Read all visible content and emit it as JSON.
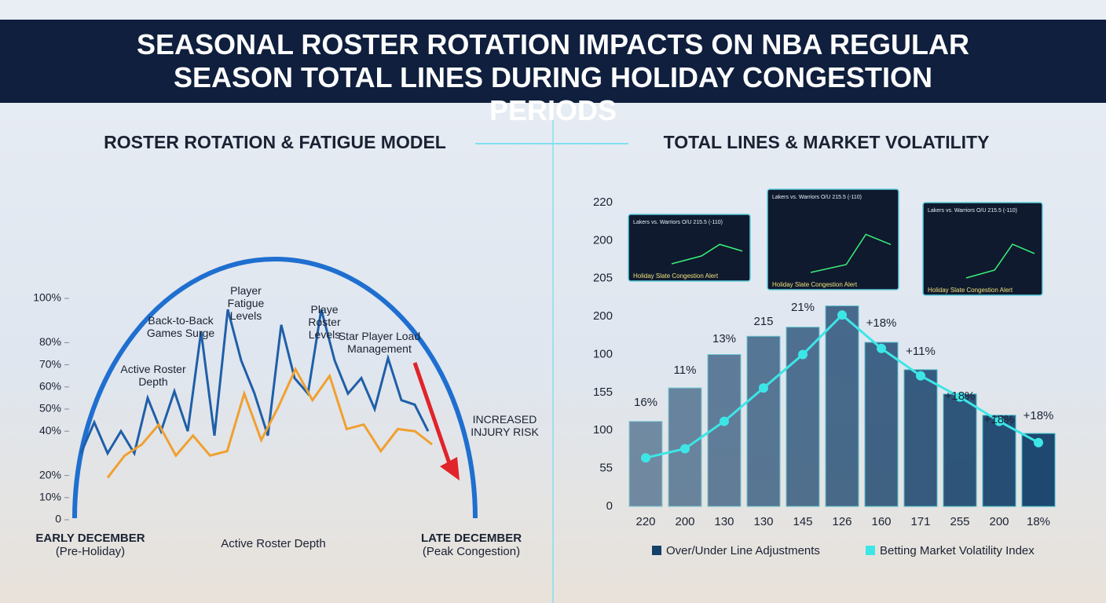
{
  "title": "SEASONAL ROSTER ROTATION IMPACTS ON NBA REGULAR SEASON TOTAL LINES DURING HOLIDAY CONGESTION PERIODS",
  "chart_data": [
    {
      "type": "line",
      "title": "ROSTER ROTATION & FATIGUE MODEL",
      "ylim": [
        0,
        100
      ],
      "yticks": [
        0,
        {
          "value": 10,
          "label": "10%"
        },
        {
          "value": 20,
          "label": "20%"
        },
        {
          "value": 40,
          "label": "40%"
        },
        {
          "value": 50,
          "label": "50%"
        },
        {
          "value": 60,
          "label": "60%"
        },
        {
          "value": 70,
          "label": "70%"
        },
        {
          "value": 80,
          "label": "80%"
        },
        {
          "value": 100,
          "label": "100%"
        }
      ],
      "series": [
        {
          "color": "#1f5fa8",
          "values": [
            30,
            44,
            30,
            40,
            30,
            55,
            40,
            58,
            40,
            85,
            38,
            95,
            72,
            57,
            38,
            88,
            64,
            57,
            95,
            72,
            57,
            64,
            50,
            73,
            54,
            52,
            40
          ]
        },
        {
          "color": "#f0a030",
          "values": [
            19,
            29,
            34,
            43,
            29,
            38,
            29,
            31,
            57,
            36,
            51,
            68,
            54,
            65,
            41,
            43,
            31,
            41,
            40,
            34
          ]
        }
      ],
      "x_start_label": "EARLY DECEMBER",
      "x_start_sublabel": "(Pre-Holiday)",
      "x_end_label": "LATE DECEMBER",
      "x_end_sublabel": "(Peak Congestion)",
      "xlabel": "Active Roster Depth",
      "annotations": [
        "Player Fatigue Levels",
        "Back-to-Back Games Surge",
        "Active Roster Depth",
        "Playe Roster Levels",
        "Star Player Load Management",
        "INCREASED INJURY RISK"
      ]
    },
    {
      "type": "bar",
      "title": "TOTAL LINES & MARKET VOLATILITY",
      "categories": [
        "220",
        "200",
        "130",
        "130",
        "145",
        "126",
        "160",
        "171",
        "255",
        "200",
        "18%"
      ],
      "y_axis_labels": [
        "220",
        "200",
        "205",
        "200",
        "100",
        "155",
        "100",
        "55",
        "0"
      ],
      "ylim": [
        0,
        100
      ],
      "series": [
        {
          "name": "Over/Under Line Adjustments",
          "type": "bar",
          "color": "#14406a",
          "values": [
            28,
            39,
            50,
            56,
            59,
            66,
            54,
            45,
            37,
            30,
            24
          ]
        },
        {
          "name": "Betting Market Volatility Index",
          "type": "line",
          "color": "#3de6e6",
          "values": [
            16,
            19,
            28,
            39,
            50,
            63,
            52,
            43,
            36,
            28,
            21
          ]
        }
      ],
      "annotations": [
        "16%",
        "11%",
        "13%",
        "215",
        "21%",
        "+18%",
        "+11%",
        "+18%",
        "+18%",
        "+18%"
      ],
      "panels": [
        {
          "heading": "Lakers vs. Warriors O/U 215.5 (-110)",
          "alert": "Holiday Slate Congestion Alert"
        },
        {
          "heading": "Lakers vs. Warriors O/U 215.5 (-110)",
          "alert": "Holiday Slate Congestion Alert"
        },
        {
          "heading": "Lakers vs. Warriors O/U 215.5 (-110)",
          "alert": "Holiday Slate Congestion Alert"
        }
      ]
    }
  ]
}
